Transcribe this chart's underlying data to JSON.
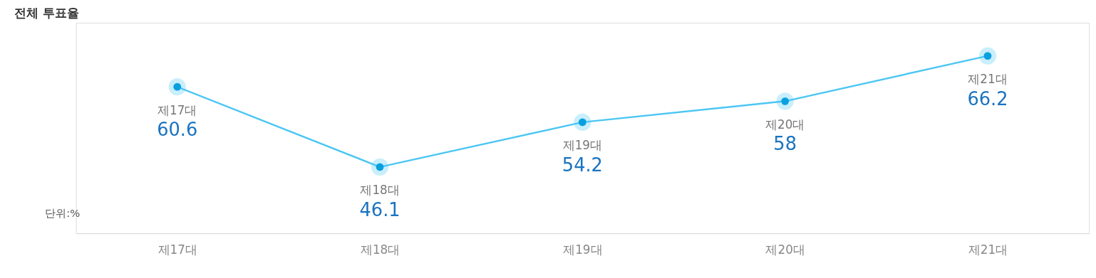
{
  "chart_data": {
    "type": "line",
    "title": "전체 투표율",
    "categories": [
      "제17대",
      "제18대",
      "제19대",
      "제20대",
      "제21대"
    ],
    "series": [
      {
        "color": "#4cc6f4",
        "values": [
          60.6,
          46.1,
          54.2,
          58,
          66.2
        ]
      }
    ],
    "data_labels": true,
    "marker": "circle",
    "grid": false,
    "annotations": [
      "단위:%"
    ]
  }
}
